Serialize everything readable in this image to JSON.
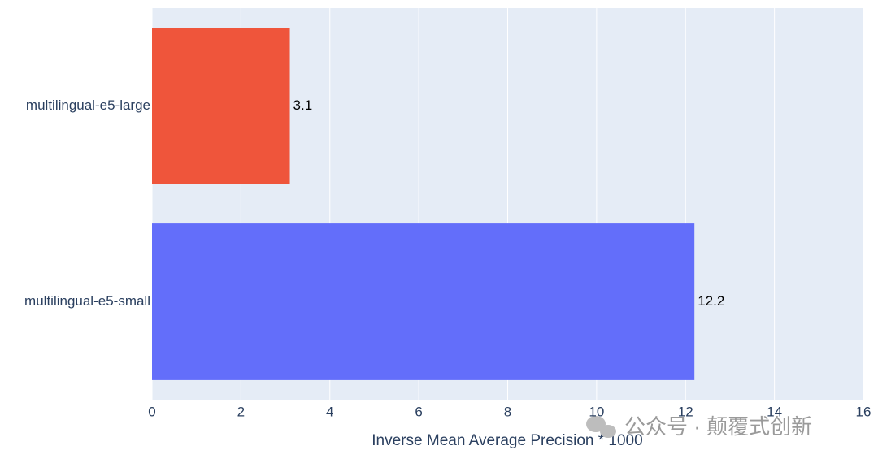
{
  "chart_data": {
    "type": "hbar",
    "categories": [
      "multilingual-e5-large",
      "multilingual-e5-small"
    ],
    "values": [
      3.1,
      12.2
    ],
    "colors": [
      "#EF553B",
      "#636EFA"
    ],
    "xlabel": "Inverse Mean Average Precision * 1000",
    "xlim": [
      0,
      16
    ],
    "xticks": [
      0,
      2,
      4,
      6,
      8,
      10,
      12,
      14,
      16
    ],
    "grid": true,
    "watermark": "公众号 · 颠覆式创新"
  }
}
